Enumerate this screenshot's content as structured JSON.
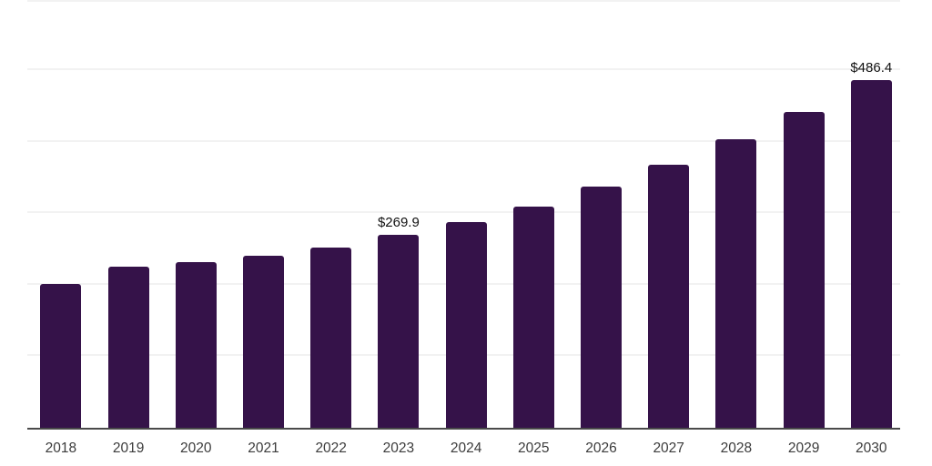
{
  "chart_data": {
    "type": "bar",
    "title": "",
    "xlabel": "",
    "ylabel": "",
    "categories": [
      "2018",
      "2019",
      "2020",
      "2021",
      "2022",
      "2023",
      "2024",
      "2025",
      "2026",
      "2027",
      "2028",
      "2029",
      "2030"
    ],
    "values": [
      201.2,
      225.3,
      231.7,
      240.6,
      252.1,
      269.9,
      287.7,
      309.4,
      337.4,
      367.9,
      403.6,
      441.8,
      486.4
    ],
    "point_labels": [
      "",
      "",
      "",
      "",
      "",
      "$269.9",
      "",
      "",
      "",
      "",
      "",
      "",
      "$486.4"
    ],
    "ylim": [
      0,
      600
    ],
    "gridline_values": [
      100,
      200,
      300,
      400,
      500,
      600
    ],
    "grid": "horizontal",
    "legend_position": "none",
    "colors": {
      "bar": "#351249",
      "axis_line": "#4a4a4a",
      "gridline": "#f2f2f2",
      "value_label": "#111111",
      "tick_label": "#3b3b3b",
      "background": "#ffffff"
    }
  }
}
